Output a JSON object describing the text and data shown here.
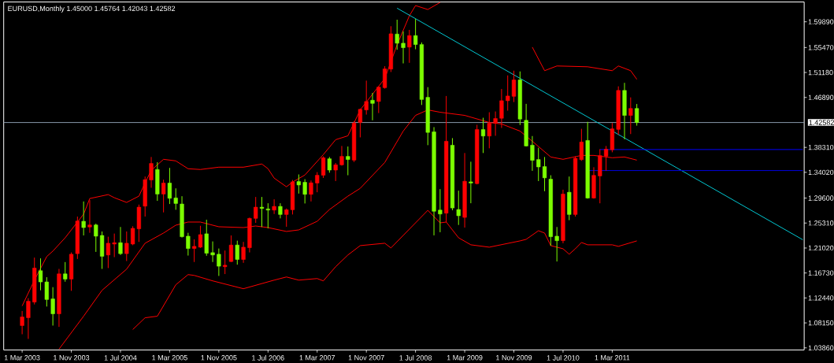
{
  "chart_data": {
    "type": "candlestick",
    "title": "EURUSD,Monthly  1.45000 1.45764 1.42043 1.42582",
    "x": [
      "2003-03",
      "2003-04",
      "2003-05",
      "2003-06",
      "2003-07",
      "2003-08",
      "2003-09",
      "2003-10",
      "2003-11",
      "2003-12",
      "2004-01",
      "2004-02",
      "2004-03",
      "2004-04",
      "2004-05",
      "2004-06",
      "2004-07",
      "2004-08",
      "2004-09",
      "2004-10",
      "2004-11",
      "2004-12",
      "2005-01",
      "2005-02",
      "2005-03",
      "2005-04",
      "2005-05",
      "2005-06",
      "2005-07",
      "2005-08",
      "2005-09",
      "2005-10",
      "2005-11",
      "2005-12",
      "2006-01",
      "2006-02",
      "2006-03",
      "2006-04",
      "2006-05",
      "2006-06",
      "2006-07",
      "2006-08",
      "2006-09",
      "2006-10",
      "2006-11",
      "2006-12",
      "2007-01",
      "2007-02",
      "2007-03",
      "2007-04",
      "2007-05",
      "2007-06",
      "2007-07",
      "2007-08",
      "2007-09",
      "2007-10",
      "2007-11",
      "2007-12",
      "2008-01",
      "2008-02",
      "2008-03",
      "2008-04",
      "2008-05",
      "2008-06",
      "2008-07",
      "2008-08",
      "2008-09",
      "2008-10",
      "2008-11",
      "2008-12",
      "2009-01",
      "2009-02",
      "2009-03",
      "2009-04",
      "2009-05",
      "2009-06",
      "2009-07",
      "2009-08",
      "2009-09",
      "2009-10",
      "2009-11",
      "2009-12",
      "2010-01",
      "2010-02",
      "2010-03",
      "2010-04",
      "2010-05",
      "2010-06",
      "2010-07",
      "2010-08",
      "2010-09",
      "2010-10",
      "2010-11",
      "2010-12",
      "2011-01",
      "2011-02",
      "2011-03",
      "2011-04",
      "2011-05",
      "2011-06",
      "2011-07"
    ],
    "ohlc": [
      [
        1.0769,
        1.102,
        1.062,
        1.0917
      ],
      [
        1.0904,
        1.124,
        1.054,
        1.1187
      ],
      [
        1.1173,
        1.1937,
        1.1132,
        1.1757
      ],
      [
        1.1712,
        1.1924,
        1.1375,
        1.1519
      ],
      [
        1.1519,
        1.16,
        1.1096,
        1.1217
      ],
      [
        1.1227,
        1.1429,
        1.0769,
        1.0971
      ],
      [
        1.0971,
        1.1743,
        1.0746,
        1.1658
      ],
      [
        1.1658,
        1.186,
        1.1523,
        1.1568
      ],
      [
        1.1568,
        1.2026,
        1.1366,
        1.1995
      ],
      [
        1.2005,
        1.2642,
        1.1914,
        1.2565
      ],
      [
        1.2561,
        1.2902,
        1.2318,
        1.2453
      ],
      [
        1.2463,
        1.2925,
        1.2363,
        1.2498
      ],
      [
        1.2498,
        1.2521,
        1.2035,
        1.2305
      ],
      [
        1.2318,
        1.2386,
        1.1743,
        1.1959
      ],
      [
        1.1982,
        1.2296,
        1.1757,
        1.2184
      ],
      [
        1.217,
        1.235,
        1.1945,
        1.2193
      ],
      [
        1.2193,
        1.2463,
        1.1982,
        1.2005
      ],
      [
        1.2005,
        1.2386,
        1.1878,
        1.2184
      ],
      [
        1.217,
        1.2476,
        1.215,
        1.244
      ],
      [
        1.2431,
        1.2848,
        1.2207,
        1.2804
      ],
      [
        1.2821,
        1.333,
        1.2642,
        1.3276
      ],
      [
        1.3271,
        1.3666,
        1.3137,
        1.3555
      ],
      [
        1.3451,
        1.3576,
        1.2912,
        1.3029
      ],
      [
        1.3029,
        1.3276,
        1.2714,
        1.3218
      ],
      [
        1.3218,
        1.3478,
        1.2858,
        1.2956
      ],
      [
        1.2962,
        1.3127,
        1.2759,
        1.2867
      ],
      [
        1.2858,
        1.2992,
        1.2282,
        1.2296
      ],
      [
        1.2305,
        1.2363,
        1.1972,
        1.2093
      ],
      [
        1.2093,
        1.2251,
        1.1861,
        1.213
      ],
      [
        1.2116,
        1.2484,
        1.2103,
        1.2332
      ],
      [
        1.2346,
        1.2588,
        1.1968,
        1.2012
      ],
      [
        1.2022,
        1.2215,
        1.1861,
        1.1982
      ],
      [
        1.1995,
        1.2093,
        1.1622,
        1.1789
      ],
      [
        1.178,
        1.2059,
        1.1654,
        1.1806
      ],
      [
        1.1869,
        1.2318,
        1.1861,
        1.2153
      ],
      [
        1.2153,
        1.2228,
        1.1816,
        1.1905
      ],
      [
        1.1905,
        1.2207,
        1.1847,
        1.2116
      ],
      [
        1.2107,
        1.2624,
        1.2026,
        1.2611
      ],
      [
        1.2611,
        1.2979,
        1.2534,
        1.2804
      ],
      [
        1.2804,
        1.2979,
        1.2463,
        1.2781
      ],
      [
        1.2773,
        1.2871,
        1.244,
        1.2754
      ],
      [
        1.2754,
        1.2939,
        1.2686,
        1.2817
      ],
      [
        1.2817,
        1.2871,
        1.2611,
        1.2678
      ],
      [
        1.2678,
        1.2781,
        1.2467,
        1.2759
      ],
      [
        1.2759,
        1.3271,
        1.2678,
        1.3239
      ],
      [
        1.3244,
        1.3366,
        1.3037,
        1.3185
      ],
      [
        1.3231,
        1.3285,
        1.2867,
        1.3024
      ],
      [
        1.3024,
        1.3262,
        1.2902,
        1.3222
      ],
      [
        1.3218,
        1.3406,
        1.306,
        1.3352
      ],
      [
        1.3352,
        1.3676,
        1.3306,
        1.3653
      ],
      [
        1.3635,
        1.3666,
        1.3396,
        1.3441
      ],
      [
        1.3441,
        1.3563,
        1.3252,
        1.3531
      ],
      [
        1.3531,
        1.3855,
        1.3517,
        1.3676
      ],
      [
        1.3676,
        1.3846,
        1.3352,
        1.3622
      ],
      [
        1.3612,
        1.428,
        1.358,
        1.425
      ],
      [
        1.4259,
        1.4498,
        1.4003,
        1.4485
      ],
      [
        1.4475,
        1.4978,
        1.4394,
        1.462
      ],
      [
        1.4641,
        1.4768,
        1.4296,
        1.4587
      ],
      [
        1.462,
        1.488,
        1.4421,
        1.4866
      ],
      [
        1.4857,
        1.5226,
        1.484,
        1.518
      ],
      [
        1.5176,
        1.5913,
        1.5126,
        1.5783
      ],
      [
        1.5778,
        1.6025,
        1.5509,
        1.5621
      ],
      [
        1.5621,
        1.5823,
        1.5274,
        1.5544
      ],
      [
        1.5554,
        1.585,
        1.5284,
        1.5752
      ],
      [
        1.5752,
        1.6038,
        1.5517,
        1.5598
      ],
      [
        1.5598,
        1.5634,
        1.456,
        1.4654
      ],
      [
        1.4691,
        1.4866,
        1.3869,
        1.4088
      ],
      [
        1.4098,
        1.4179,
        1.2319,
        1.2733
      ],
      [
        1.2754,
        1.3114,
        1.2373,
        1.2686
      ],
      [
        1.27,
        1.4714,
        1.2544,
        1.3936
      ],
      [
        1.3868,
        1.399,
        1.275,
        1.279
      ],
      [
        1.2763,
        1.3087,
        1.2498,
        1.2656
      ],
      [
        1.2628,
        1.3734,
        1.2453,
        1.3249
      ],
      [
        1.3239,
        1.3585,
        1.2871,
        1.3218
      ],
      [
        1.3208,
        1.4219,
        1.3195,
        1.4138
      ],
      [
        1.4138,
        1.434,
        1.3734,
        1.4026
      ],
      [
        1.4026,
        1.4435,
        1.3815,
        1.4246
      ],
      [
        1.4246,
        1.4448,
        1.403,
        1.4327
      ],
      [
        1.4331,
        1.4835,
        1.4165,
        1.4633
      ],
      [
        1.4633,
        1.5068,
        1.4462,
        1.4714
      ],
      [
        1.4708,
        1.5149,
        1.461,
        1.4991
      ],
      [
        1.4991,
        1.5136,
        1.4215,
        1.4317
      ],
      [
        1.4296,
        1.4579,
        1.3846,
        1.3855
      ],
      [
        1.3869,
        1.4026,
        1.3428,
        1.3608
      ],
      [
        1.3622,
        1.3824,
        1.3252,
        1.3495
      ],
      [
        1.3501,
        1.3666,
        1.3078,
        1.3307
      ],
      [
        1.3285,
        1.3352,
        1.214,
        1.2296
      ],
      [
        1.2305,
        1.2463,
        1.187,
        1.2228
      ],
      [
        1.2228,
        1.3104,
        1.2184,
        1.3029
      ],
      [
        1.306,
        1.333,
        1.258,
        1.2678
      ],
      [
        1.2678,
        1.3676,
        1.2642,
        1.3644
      ],
      [
        1.362,
        1.415,
        1.36,
        1.3923
      ],
      [
        1.395,
        1.427,
        1.295,
        1.296
      ],
      [
        1.296,
        1.349,
        1.295,
        1.335
      ],
      [
        1.334,
        1.38,
        1.287,
        1.369
      ],
      [
        1.368,
        1.3855,
        1.343,
        1.38
      ],
      [
        1.379,
        1.425,
        1.3747,
        1.415
      ],
      [
        1.414,
        1.488,
        1.405,
        1.481
      ],
      [
        1.481,
        1.494,
        1.397,
        1.438
      ],
      [
        1.438,
        1.469,
        1.406,
        1.45
      ],
      [
        1.45,
        1.45764,
        1.42043,
        1.42582
      ]
    ],
    "colors": [
      "#ff0000",
      "#ff0000",
      "#ff0000",
      "#7cfc00",
      "#7cfc00",
      "#7cfc00",
      "#ff0000",
      "#7cfc00",
      "#ff0000",
      "#ff0000",
      "#7cfc00",
      "#ff0000",
      "#7cfc00",
      "#7cfc00",
      "#ff0000",
      "#ff0000",
      "#7cfc00",
      "#ff0000",
      "#ff0000",
      "#ff0000",
      "#ff0000",
      "#ff0000",
      "#7cfc00",
      "#ff0000",
      "#7cfc00",
      "#7cfc00",
      "#7cfc00",
      "#7cfc00",
      "#ff0000",
      "#ff0000",
      "#7cfc00",
      "#7cfc00",
      "#7cfc00",
      "#ff0000",
      "#ff0000",
      "#7cfc00",
      "#ff0000",
      "#ff0000",
      "#ff0000",
      "#7cfc00",
      "#7cfc00",
      "#ff0000",
      "#7cfc00",
      "#ff0000",
      "#ff0000",
      "#7cfc00",
      "#7cfc00",
      "#ff0000",
      "#ff0000",
      "#ff0000",
      "#7cfc00",
      "#ff0000",
      "#ff0000",
      "#7cfc00",
      "#ff0000",
      "#ff0000",
      "#ff0000",
      "#7cfc00",
      "#ff0000",
      "#ff0000",
      "#ff0000",
      "#7cfc00",
      "#7cfc00",
      "#ff0000",
      "#7cfc00",
      "#7cfc00",
      "#7cfc00",
      "#7cfc00",
      "#7cfc00",
      "#ff0000",
      "#7cfc00",
      "#7cfc00",
      "#ff0000",
      "#7cfc00",
      "#ff0000",
      "#7cfc00",
      "#ff0000",
      "#ff0000",
      "#ff0000",
      "#ff0000",
      "#ff0000",
      "#7cfc00",
      "#7cfc00",
      "#7cfc00",
      "#7cfc00",
      "#7cfc00",
      "#7cfc00",
      "#7cfc00",
      "#ff0000",
      "#7cfc00",
      "#ff0000",
      "#ff0000",
      "#7cfc00",
      "#ff0000",
      "#ff0000",
      "#ff0000",
      "#ff0000",
      "#ff0000",
      "#7cfc00",
      "#ff0000",
      "#7cfc00"
    ],
    "series": [
      {
        "type": "line",
        "color": "#ff0000",
        "x": [
          "2003-03",
          "2003-05",
          "2003-07",
          "2003-08",
          "2003-10",
          "2003-11",
          "2004-01",
          "2004-02",
          "2004-05",
          "2004-06",
          "2004-08",
          "2004-10",
          "2004-11",
          "2004-12",
          "2005-02",
          "2005-04",
          "2005-06",
          "2005-08",
          "2005-11",
          "2006-03",
          "2006-06",
          "2006-07",
          "2006-08",
          "2006-10",
          "2006-11",
          "2007-01",
          "2007-04",
          "2007-06",
          "2007-08",
          "2007-10",
          "2008-02",
          "2008-04",
          "2008-06",
          "2008-07",
          "2008-09",
          "2008-11",
          "2008-12",
          "2010-02",
          "2010-04",
          "2010-06",
          "2010-11",
          "2011-03",
          "2011-04",
          "2011-06",
          "2011-07"
        ],
        "values": [
          1.1106,
          1.155,
          1.1955,
          1.2049,
          1.2278,
          1.2413,
          1.2683,
          1.2952,
          1.302,
          1.2966,
          1.2885,
          1.2993,
          1.3222,
          1.3437,
          1.3626,
          1.3599,
          1.3464,
          1.3451,
          1.3491,
          1.3491,
          1.3545,
          1.3464,
          1.3303,
          1.3154,
          1.3235,
          1.3356,
          1.3707,
          1.3963,
          1.403,
          1.4475,
          1.5014,
          1.5594,
          1.6092,
          1.6268,
          1.62,
          1.6322,
          null,
          1.5553,
          1.5149,
          1.523,
          1.5216,
          1.5149,
          1.523,
          1.5149,
          1.5001
        ]
      },
      {
        "type": "line",
        "color": "#ff0000",
        "x": [
          "2003-09",
          "2004-01",
          "2004-04",
          "2004-08",
          "2004-11",
          "2005-02",
          "2005-04",
          "2005-06",
          "2005-08",
          "2005-11",
          "2006-03",
          "2006-05",
          "2006-07",
          "2006-10",
          "2006-12",
          "2007-03",
          "2007-05",
          "2007-08",
          "2007-10",
          "2008-02",
          "2008-05",
          "2008-07",
          "2008-09",
          "2008-11",
          "2009-03",
          "2009-07",
          "2009-09",
          "2009-12",
          "2010-02",
          "2010-05",
          "2010-07",
          "2010-10",
          "2010-12",
          "2011-03",
          "2011-05",
          "2011-07"
        ],
        "values": [
          1.0364,
          1.093,
          1.1375,
          1.1739,
          1.2184,
          1.2359,
          1.2494,
          1.2548,
          1.2548,
          1.2467,
          1.2453,
          1.248,
          1.2453,
          1.2386,
          1.2413,
          1.2561,
          1.2763,
          1.2993,
          1.3127,
          1.3572,
          1.4111,
          1.4381,
          1.4475,
          1.4435,
          1.4381,
          1.4259,
          1.4233,
          1.4111,
          1.3936,
          1.3666,
          1.3626,
          1.3693,
          1.3693,
          1.3653,
          1.3666,
          1.3612
        ]
      },
      {
        "type": "line",
        "color": "#ff0000",
        "x": [
          "2004-09",
          "2004-11",
          "2005-01",
          "2005-04",
          "2005-06",
          "2005-07",
          "2005-10",
          "2006-03",
          "2006-08",
          "2006-10",
          "2006-12",
          "2007-03",
          "2007-04",
          "2007-06",
          "2007-08",
          "2007-10",
          "2008-02",
          "2008-03",
          "2008-05",
          "2008-09",
          "2008-11",
          "2008-12",
          "2009-02",
          "2009-04",
          "2009-07",
          "2009-12",
          "2010-01",
          "2010-03",
          "2010-04",
          "2010-05",
          "2010-07",
          "2010-08",
          "2010-09",
          "2010-10",
          "2010-11",
          "2011-03",
          "2011-04",
          "2011-07"
        ],
        "values": [
          1.0701,
          1.0903,
          1.093,
          1.147,
          1.1645,
          1.1631,
          1.1537,
          1.1402,
          1.155,
          1.1604,
          1.155,
          1.1577,
          1.1537,
          1.178,
          1.1982,
          1.2143,
          1.2184,
          1.2103,
          1.2319,
          1.275,
          1.2534,
          1.2548,
          1.2278,
          1.2157,
          1.2116,
          1.2224,
          1.2251,
          1.2399,
          1.2359,
          1.2143,
          1.2089,
          1.1995,
          1.2089,
          1.2197,
          1.2157,
          1.2157,
          1.213,
          1.2224
        ]
      },
      {
        "type": "line",
        "color": "#00c8d2",
        "x": [
          "2008-04",
          "2013-10"
        ],
        "values": [
          1.6223,
          1.2244
        ]
      },
      {
        "type": "line",
        "color": "#0000ff",
        "x": [
          "2011-01",
          "2013-10"
        ],
        "values": [
          1.3794,
          1.3794
        ]
      },
      {
        "type": "line",
        "color": "#0000e0",
        "x": [
          "2010-11",
          "2013-10"
        ],
        "values": [
          1.3433,
          1.3433
        ]
      }
    ],
    "ref_lines": [
      {
        "axis": "y",
        "value": 1.42582,
        "label": "1.42582",
        "color": "#8899aa"
      }
    ],
    "xlim": [
      "2002-12-01",
      "2013-10-08"
    ],
    "ylim": [
      1.035,
      1.633
    ],
    "xticks": [
      {
        "value": "2003-03",
        "label": "1 Mar 2003"
      },
      {
        "value": "2003-11",
        "label": "1 Nov 2003"
      },
      {
        "value": "2004-07",
        "label": "1 Jul 2004"
      },
      {
        "value": "2005-03",
        "label": "1 Mar 2005"
      },
      {
        "value": "2005-11",
        "label": "1 Nov 2005"
      },
      {
        "value": "2006-07",
        "label": "1 Jul 2006"
      },
      {
        "value": "2007-03",
        "label": "1 Mar 2007"
      },
      {
        "value": "2007-11",
        "label": "1 Nov 2007"
      },
      {
        "value": "2008-07",
        "label": "1 Jul 2008"
      },
      {
        "value": "2009-03",
        "label": "1 Mar 2009"
      },
      {
        "value": "2009-11",
        "label": "1 Nov 2009"
      },
      {
        "value": "2010-07",
        "label": "1 Jul 2010"
      },
      {
        "value": "2011-03",
        "label": "1 Mar 2011"
      }
    ],
    "yticks": [
      {
        "value": 1.5989,
        "label": "1.59890"
      },
      {
        "value": 1.5547,
        "label": "1.55470"
      },
      {
        "value": 1.5118,
        "label": "1.51180"
      },
      {
        "value": 1.4689,
        "label": "1.46890"
      },
      {
        "value": 1.3831,
        "label": "1.38310"
      },
      {
        "value": 1.3402,
        "label": "1.34020"
      },
      {
        "value": 1.296,
        "label": "1.29600"
      },
      {
        "value": 1.2531,
        "label": "1.25310"
      },
      {
        "value": 1.2102,
        "label": "1.21020"
      },
      {
        "value": 1.1673,
        "label": "1.16730"
      },
      {
        "value": 1.1244,
        "label": "1.12440"
      },
      {
        "value": 1.0815,
        "label": "1.08150"
      },
      {
        "value": 1.0386,
        "label": "1.03860"
      }
    ]
  }
}
